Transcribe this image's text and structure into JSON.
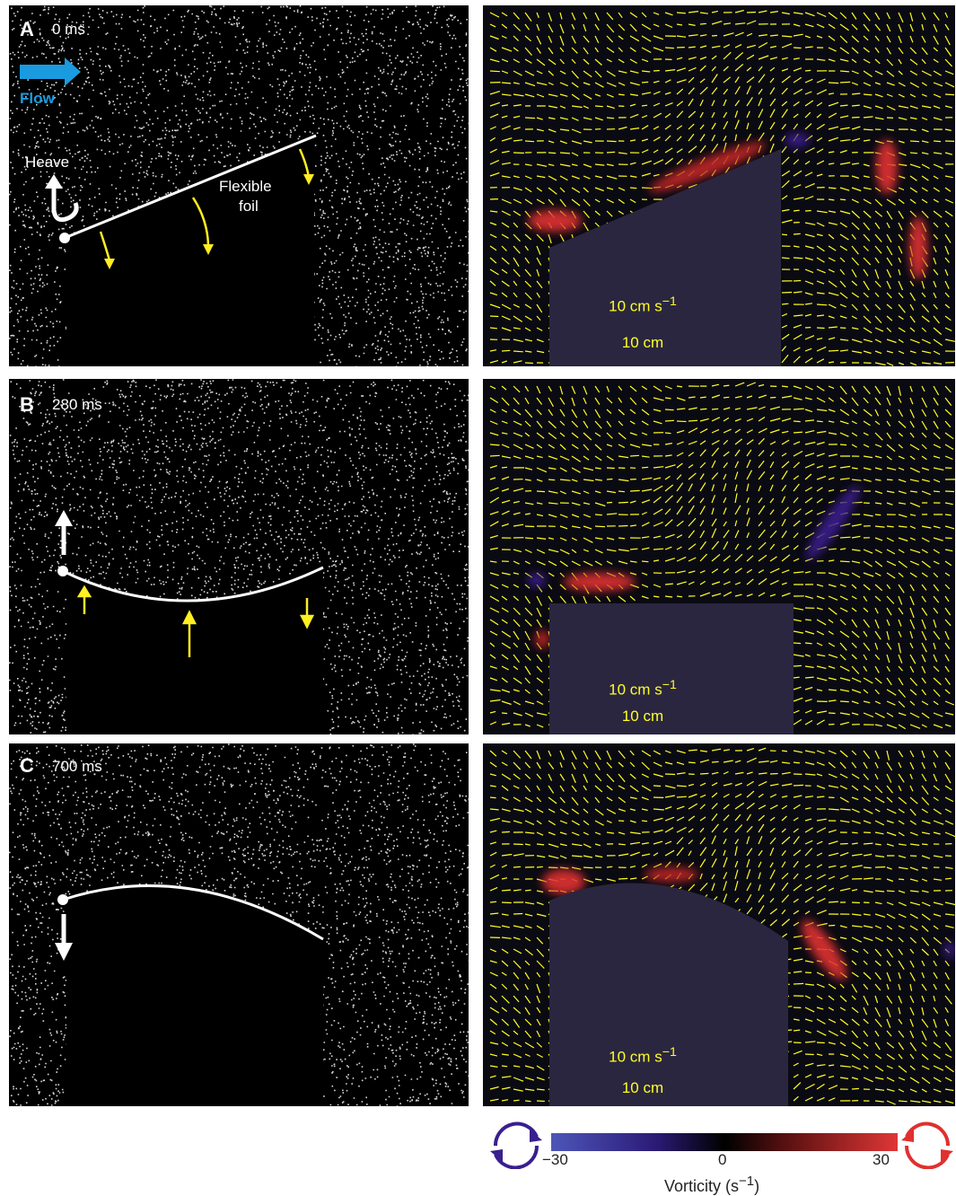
{
  "panels": [
    {
      "letter": "A",
      "time": "0 ms"
    },
    {
      "letter": "B",
      "time": "280 ms"
    },
    {
      "letter": "C",
      "time": "700 ms"
    }
  ],
  "annotations": {
    "flow": "Flow",
    "heave": "Heave",
    "foil_line1": "Flexible",
    "foil_line2": "foil"
  },
  "scale": {
    "velocity_num": "10 cm",
    "velocity_exp": "s",
    "velocity_pow": "−1",
    "length": "10 cm"
  },
  "colorbar": {
    "min_label": "−30",
    "mid_label": "0",
    "max_label": "30",
    "title": "Vorticity (s",
    "title_pow": "−1",
    "title_end": ")"
  },
  "colors": {
    "arrow": "#ffff22",
    "flow": "#1a9be0",
    "neg": "#3a1f8f",
    "pos": "#e03030"
  }
}
